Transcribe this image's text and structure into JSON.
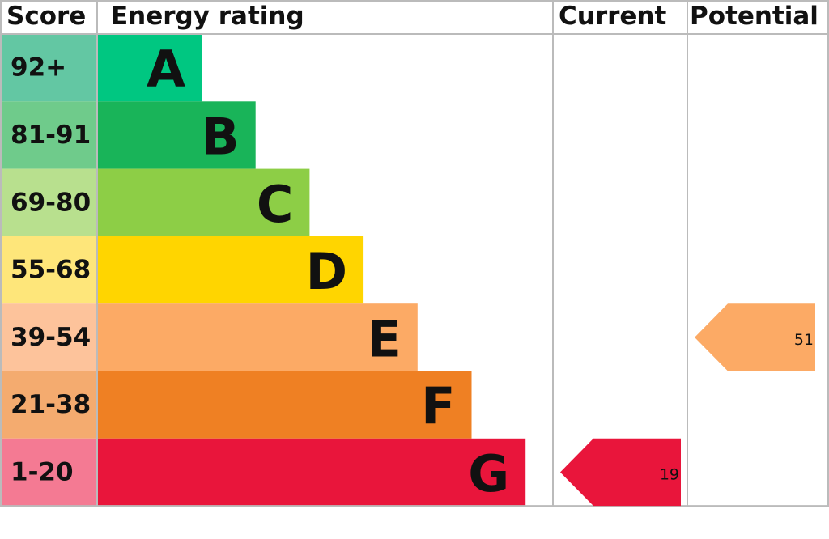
{
  "chart_data": {
    "type": "energy-rating",
    "headers": [
      "Score",
      "Energy rating",
      "Current",
      "Potential"
    ],
    "bands": [
      {
        "score": "92+",
        "letter": "A",
        "score_color": "#63c7a3",
        "color": "#00c781"
      },
      {
        "score": "81-91",
        "letter": "B",
        "score_color": "#6fcb8b",
        "color": "#19b459"
      },
      {
        "score": "69-80",
        "letter": "C",
        "score_color": "#b8e08e",
        "color": "#8dce46"
      },
      {
        "score": "55-68",
        "letter": "D",
        "score_color": "#fee67a",
        "color": "#ffd500"
      },
      {
        "score": "39-54",
        "letter": "E",
        "score_color": "#fdc39b",
        "color": "#fcaa65"
      },
      {
        "score": "21-38",
        "letter": "F",
        "score_color": "#f4ab6f",
        "color": "#ef8023"
      },
      {
        "score": "1-20",
        "letter": "G",
        "score_color": "#f47a93",
        "color": "#e9153b"
      }
    ],
    "current": 19,
    "potential": 51
  }
}
